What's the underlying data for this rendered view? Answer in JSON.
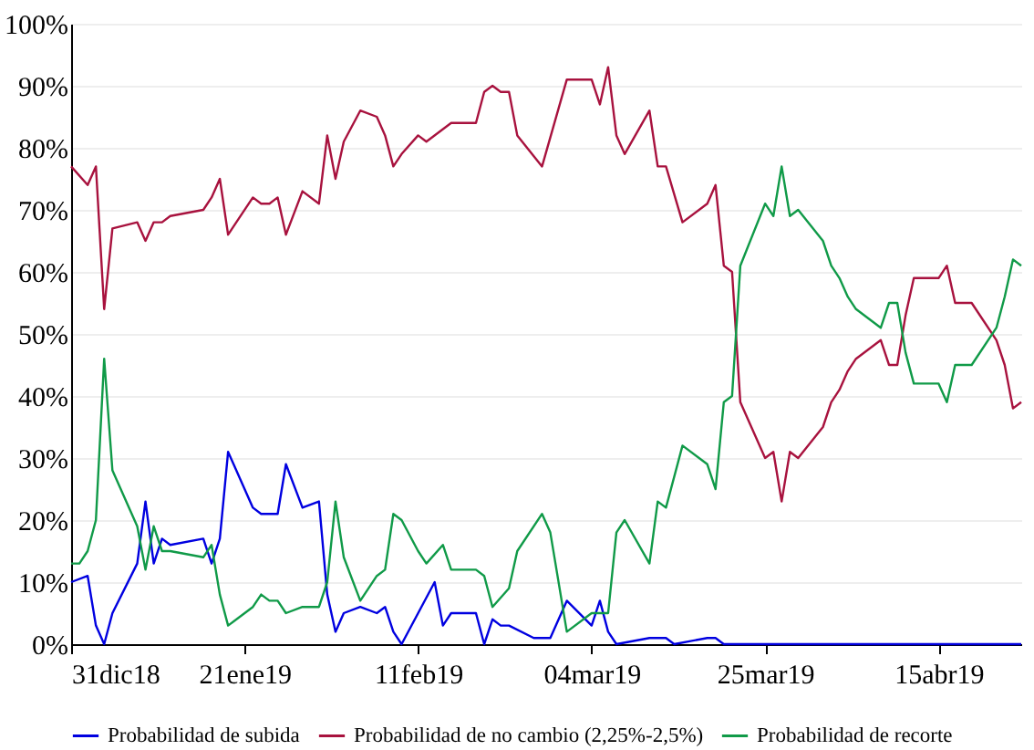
{
  "chart_data": {
    "type": "line",
    "xlim": [
      "2018-12-31",
      "2019-04-25"
    ],
    "ylim": [
      0,
      100
    ],
    "xticks": [
      {
        "value": "2018-12-31",
        "label": "31dic18"
      },
      {
        "value": "2019-01-21",
        "label": "21ene19"
      },
      {
        "value": "2019-02-11",
        "label": "11feb19"
      },
      {
        "value": "2019-03-04",
        "label": "04mar19"
      },
      {
        "value": "2019-03-25",
        "label": "25mar19"
      },
      {
        "value": "2019-04-15",
        "label": "15abr19"
      }
    ],
    "yticks": [
      {
        "value": 0,
        "label": "0%"
      },
      {
        "value": 10,
        "label": "10%"
      },
      {
        "value": 20,
        "label": "20%"
      },
      {
        "value": 30,
        "label": "30%"
      },
      {
        "value": 40,
        "label": "40%"
      },
      {
        "value": 50,
        "label": "50%"
      },
      {
        "value": 60,
        "label": "60%"
      },
      {
        "value": 70,
        "label": "70%"
      },
      {
        "value": 80,
        "label": "80%"
      },
      {
        "value": 90,
        "label": "90%"
      },
      {
        "value": 100,
        "label": "100%"
      }
    ],
    "grid": "y",
    "legend": "bottom",
    "series": [
      {
        "name": "Probabilidad de subida",
        "color": "#0000e0",
        "x": [
          "2018-12-31",
          "2019-01-02",
          "2019-01-03",
          "2019-01-04",
          "2019-01-05",
          "2019-01-08",
          "2019-01-09",
          "2019-01-10",
          "2019-01-11",
          "2019-01-12",
          "2019-01-16",
          "2019-01-17",
          "2019-01-18",
          "2019-01-19",
          "2019-01-22",
          "2019-01-23",
          "2019-01-25",
          "2019-01-26",
          "2019-01-28",
          "2019-01-30",
          "2019-01-31",
          "2019-02-01",
          "2019-02-02",
          "2019-02-04",
          "2019-02-06",
          "2019-02-07",
          "2019-02-08",
          "2019-02-09",
          "2019-02-11",
          "2019-02-13",
          "2019-02-14",
          "2019-02-15",
          "2019-02-18",
          "2019-02-19",
          "2019-02-20",
          "2019-02-21",
          "2019-02-22",
          "2019-02-25",
          "2019-02-27",
          "2019-03-01",
          "2019-03-04",
          "2019-03-05",
          "2019-03-06",
          "2019-03-07",
          "2019-03-11",
          "2019-03-12",
          "2019-03-13",
          "2019-03-14",
          "2019-03-18",
          "2019-03-19",
          "2019-03-20",
          "2019-04-25"
        ],
        "values": [
          10,
          11,
          3,
          0,
          5,
          13,
          23,
          13,
          17,
          16,
          17,
          13,
          17,
          31,
          22,
          21,
          21,
          29,
          22,
          23,
          8,
          2,
          5,
          6,
          5,
          6,
          2,
          0,
          5,
          10,
          3,
          5,
          5,
          0,
          4,
          3,
          3,
          1,
          1,
          7,
          3,
          7,
          2,
          0,
          1,
          1,
          1,
          0,
          1,
          1,
          0,
          0
        ]
      },
      {
        "name": "Probabilidad de no cambio (2,25%-2,5%)",
        "color": "#a8123e",
        "x": [
          "2018-12-31",
          "2019-01-02",
          "2019-01-03",
          "2019-01-04",
          "2019-01-05",
          "2019-01-08",
          "2019-01-09",
          "2019-01-10",
          "2019-01-11",
          "2019-01-12",
          "2019-01-16",
          "2019-01-17",
          "2019-01-18",
          "2019-01-19",
          "2019-01-22",
          "2019-01-23",
          "2019-01-24",
          "2019-01-25",
          "2019-01-26",
          "2019-01-28",
          "2019-01-30",
          "2019-01-31",
          "2019-02-01",
          "2019-02-02",
          "2019-02-04",
          "2019-02-06",
          "2019-02-07",
          "2019-02-08",
          "2019-02-09",
          "2019-02-11",
          "2019-02-12",
          "2019-02-15",
          "2019-02-18",
          "2019-02-19",
          "2019-02-20",
          "2019-02-21",
          "2019-02-22",
          "2019-02-23",
          "2019-02-26",
          "2019-03-01",
          "2019-03-04",
          "2019-03-05",
          "2019-03-06",
          "2019-03-07",
          "2019-03-08",
          "2019-03-11",
          "2019-03-12",
          "2019-03-13",
          "2019-03-15",
          "2019-03-18",
          "2019-03-19",
          "2019-03-20",
          "2019-03-21",
          "2019-03-22",
          "2019-03-25",
          "2019-03-26",
          "2019-03-27",
          "2019-03-28",
          "2019-03-29",
          "2019-04-01",
          "2019-04-02",
          "2019-04-03",
          "2019-04-04",
          "2019-04-05",
          "2019-04-08",
          "2019-04-09",
          "2019-04-10",
          "2019-04-11",
          "2019-04-12",
          "2019-04-15",
          "2019-04-16",
          "2019-04-17",
          "2019-04-18",
          "2019-04-19",
          "2019-04-22",
          "2019-04-23",
          "2019-04-24",
          "2019-04-25"
        ],
        "values": [
          77,
          74,
          77,
          54,
          67,
          68,
          65,
          68,
          68,
          69,
          70,
          72,
          75,
          66,
          72,
          71,
          71,
          72,
          66,
          73,
          71,
          82,
          75,
          81,
          86,
          85,
          82,
          77,
          79,
          82,
          81,
          84,
          84,
          89,
          90,
          89,
          89,
          82,
          77,
          91,
          91,
          87,
          93,
          82,
          79,
          86,
          77,
          77,
          68,
          71,
          74,
          61,
          60,
          39,
          30,
          31,
          23,
          31,
          30,
          35,
          39,
          41,
          44,
          46,
          49,
          45,
          45,
          53,
          59,
          59,
          61,
          55,
          55,
          55,
          49,
          45,
          38,
          39
        ]
      },
      {
        "name": "Probabilidad de recorte",
        "color": "#109a48",
        "x": [
          "2018-12-31",
          "2019-01-01",
          "2019-01-02",
          "2019-01-03",
          "2019-01-04",
          "2019-01-05",
          "2019-01-08",
          "2019-01-09",
          "2019-01-10",
          "2019-01-11",
          "2019-01-12",
          "2019-01-16",
          "2019-01-17",
          "2019-01-18",
          "2019-01-19",
          "2019-01-22",
          "2019-01-23",
          "2019-01-24",
          "2019-01-25",
          "2019-01-26",
          "2019-01-28",
          "2019-01-30",
          "2019-01-31",
          "2019-02-01",
          "2019-02-02",
          "2019-02-04",
          "2019-02-06",
          "2019-02-07",
          "2019-02-08",
          "2019-02-09",
          "2019-02-11",
          "2019-02-12",
          "2019-02-14",
          "2019-02-15",
          "2019-02-18",
          "2019-02-19",
          "2019-02-20",
          "2019-02-22",
          "2019-02-23",
          "2019-02-26",
          "2019-02-27",
          "2019-03-01",
          "2019-03-04",
          "2019-03-05",
          "2019-03-06",
          "2019-03-07",
          "2019-03-08",
          "2019-03-11",
          "2019-03-12",
          "2019-03-13",
          "2019-03-15",
          "2019-03-18",
          "2019-03-19",
          "2019-03-20",
          "2019-03-21",
          "2019-03-22",
          "2019-03-25",
          "2019-03-26",
          "2019-03-27",
          "2019-03-28",
          "2019-03-29",
          "2019-04-01",
          "2019-04-02",
          "2019-04-03",
          "2019-04-04",
          "2019-04-05",
          "2019-04-08",
          "2019-04-09",
          "2019-04-10",
          "2019-04-11",
          "2019-04-12",
          "2019-04-15",
          "2019-04-16",
          "2019-04-17",
          "2019-04-18",
          "2019-04-19",
          "2019-04-22",
          "2019-04-23",
          "2019-04-24",
          "2019-04-25"
        ],
        "values": [
          13,
          13,
          15,
          20,
          46,
          28,
          19,
          12,
          19,
          15,
          15,
          14,
          16,
          8,
          3,
          6,
          8,
          7,
          7,
          5,
          6,
          6,
          10,
          23,
          14,
          7,
          11,
          12,
          21,
          20,
          15,
          13,
          16,
          12,
          12,
          11,
          6,
          9,
          15,
          21,
          18,
          2,
          5,
          5,
          5,
          18,
          20,
          13,
          23,
          22,
          32,
          29,
          25,
          39,
          40,
          61,
          71,
          69,
          77,
          69,
          70,
          65,
          61,
          59,
          56,
          54,
          51,
          55,
          55,
          47,
          42,
          42,
          39,
          45,
          45,
          45,
          51,
          56,
          62,
          61
        ]
      }
    ]
  }
}
